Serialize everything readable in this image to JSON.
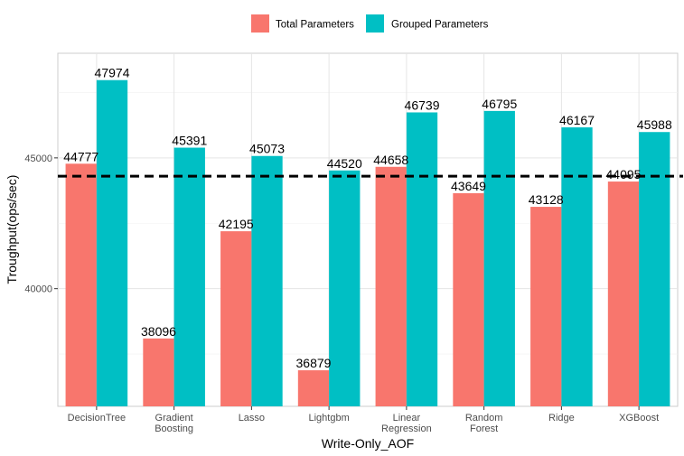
{
  "chart_data": {
    "type": "bar",
    "categories": [
      [
        "DecisionTree"
      ],
      [
        "Gradient",
        "Boosting"
      ],
      [
        "Lasso"
      ],
      [
        "Lightgbm"
      ],
      [
        "Linear",
        "Regression"
      ],
      [
        "Random",
        "Forest"
      ],
      [
        "Ridge"
      ],
      [
        "XGBoost"
      ]
    ],
    "series": [
      {
        "name": "Total Parameters",
        "color": "#F8766D",
        "values": [
          44777,
          38096,
          42195,
          36879,
          44658,
          43649,
          43128,
          44095
        ]
      },
      {
        "name": "Grouped Parameters",
        "color": "#00BFC4",
        "values": [
          47974,
          45391,
          45073,
          44520,
          46739,
          46795,
          46167,
          45988
        ]
      }
    ],
    "data_labels": true,
    "reference_line": {
      "y": 44300,
      "style": "dashed",
      "color": "#000000"
    },
    "xlabel": "Write-Only_AOF",
    "ylabel": "Troughput(ops/sec)",
    "yticks": [
      40000,
      45000
    ],
    "ylim": [
      35500,
      49000
    ],
    "grid": true,
    "legend_position": "top"
  }
}
